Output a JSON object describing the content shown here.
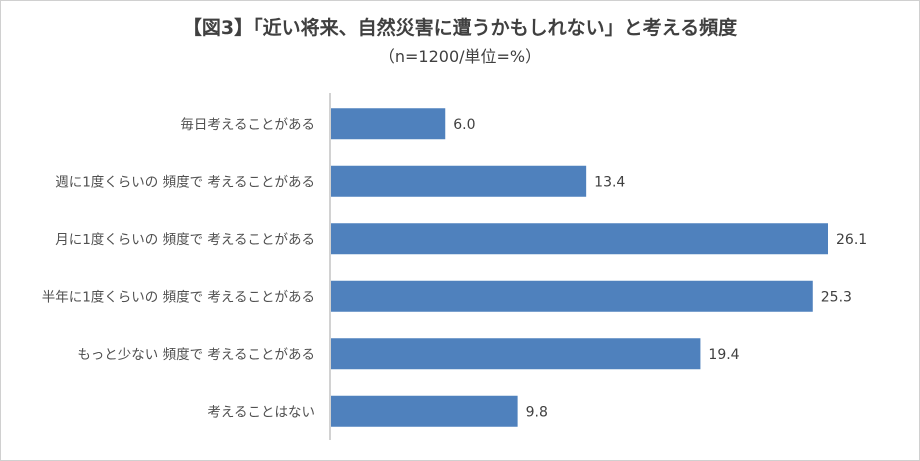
{
  "chart_data": {
    "type": "bar",
    "orientation": "horizontal",
    "title": "【図3】「近い将来、自然災害に遭うかもしれない」と考える頻度",
    "subtitle": "（n=1200/単位=%）",
    "categories": [
      "毎日考えることがある",
      "週に1度くらいの 頻度で 考えることがある",
      "月に1度くらいの 頻度で 考えることがある",
      "半年に1度くらいの 頻度で 考えることがある",
      "もっと少ない 頻度で 考えることがある",
      "考えることはない"
    ],
    "values": [
      6.0,
      13.4,
      26.1,
      25.3,
      19.4,
      9.8
    ],
    "value_labels": [
      "6.0",
      "13.4",
      "26.1",
      "25.3",
      "19.4",
      "9.8"
    ],
    "xlim": [
      0,
      26.1
    ],
    "bar_color": "#4f81bd",
    "axis_color": "#a6a6a6",
    "grid": false,
    "legend": false
  }
}
